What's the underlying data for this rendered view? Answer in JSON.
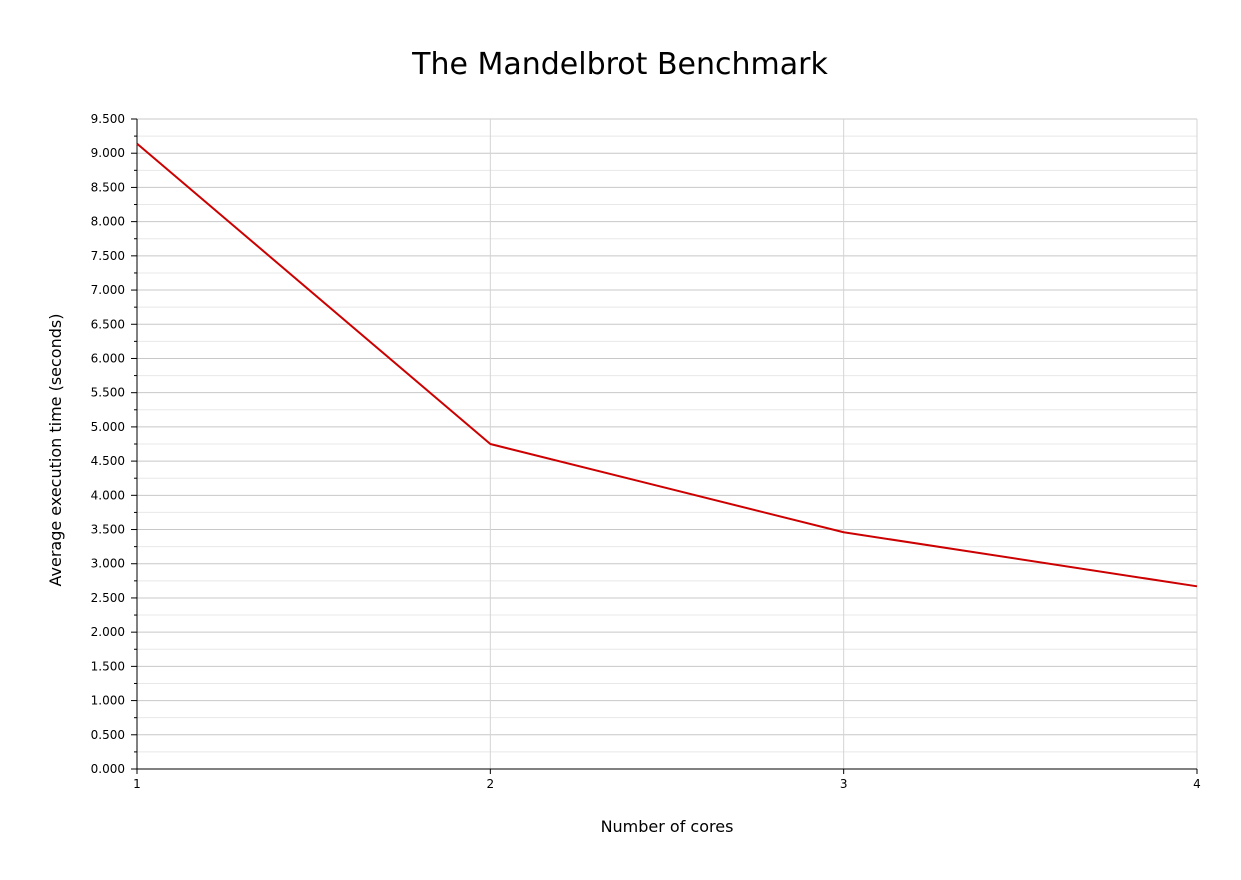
{
  "chart_data": {
    "type": "line",
    "title": "The Mandelbrot Benchmark",
    "xlabel": "Number of cores",
    "ylabel": "Average execution time (seconds)",
    "x": [
      1,
      2,
      3,
      4
    ],
    "xticks": [
      "1",
      "2",
      "3",
      "4"
    ],
    "xlim": [
      1,
      4
    ],
    "ylim": [
      0,
      9.5
    ],
    "yticks": [
      "0.000",
      "0.500",
      "1.000",
      "1.500",
      "2.000",
      "2.500",
      "3.000",
      "3.500",
      "4.000",
      "4.500",
      "5.000",
      "5.500",
      "6.000",
      "6.500",
      "7.000",
      "7.500",
      "8.000",
      "8.500",
      "9.000",
      "9.500"
    ],
    "series": [
      {
        "values": [
          9.14,
          4.75,
          3.46,
          2.67
        ],
        "color": "#cc0000"
      }
    ],
    "grid": true,
    "legend": "none"
  }
}
